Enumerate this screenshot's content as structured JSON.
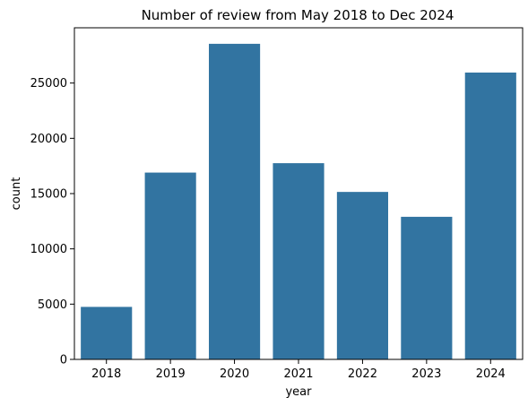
{
  "chart_data": {
    "type": "bar",
    "title": "Number of review from May 2018 to Dec 2024",
    "xlabel": "year",
    "ylabel": "count",
    "categories": [
      "2018",
      "2019",
      "2020",
      "2021",
      "2022",
      "2023",
      "2024"
    ],
    "values": [
      4750,
      16900,
      28550,
      17750,
      15150,
      12900,
      25950
    ],
    "ylim": [
      0,
      30000
    ],
    "yticks": [
      0,
      5000,
      10000,
      15000,
      20000,
      25000
    ],
    "grid": false,
    "bar_color": "#3274a1"
  }
}
